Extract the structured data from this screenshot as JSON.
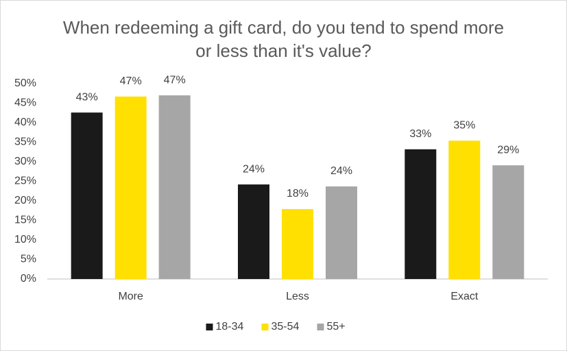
{
  "chart_data": {
    "type": "bar",
    "title": "When redeeming a gift card, do you tend to spend more or less than it's value?",
    "categories": [
      "More",
      "Less",
      "Exact"
    ],
    "series": [
      {
        "name": "18-34",
        "color": "#1a1a1a",
        "values": [
          42.6,
          24.2,
          33.2
        ],
        "value_labels": [
          "43%",
          "24%",
          "33%"
        ]
      },
      {
        "name": "35-54",
        "color": "#ffe000",
        "values": [
          46.7,
          17.9,
          35.4
        ],
        "value_labels": [
          "47%",
          "18%",
          "35%"
        ]
      },
      {
        "name": "55+",
        "color": "#a6a6a6",
        "values": [
          47.0,
          23.7,
          29.1
        ],
        "value_labels": [
          "47%",
          "24%",
          "29%"
        ]
      }
    ],
    "ylim": [
      0,
      50
    ],
    "yticks": [
      {
        "value": 0,
        "label": "0%"
      },
      {
        "value": 5,
        "label": "5%"
      },
      {
        "value": 10,
        "label": "10%"
      },
      {
        "value": 15,
        "label": "15%"
      },
      {
        "value": 20,
        "label": "20%"
      },
      {
        "value": 25,
        "label": "25%"
      },
      {
        "value": 30,
        "label": "30%"
      },
      {
        "value": 35,
        "label": "35%"
      },
      {
        "value": 40,
        "label": "40%"
      },
      {
        "value": 45,
        "label": "45%"
      },
      {
        "value": 50,
        "label": "50%"
      }
    ],
    "grid": false,
    "legend": "bottom"
  }
}
